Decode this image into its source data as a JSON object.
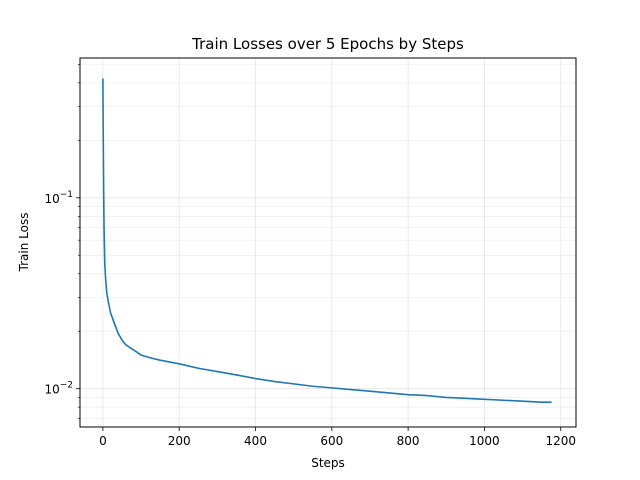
{
  "chart_data": {
    "type": "line",
    "title": "Train Losses over 5 Epochs by Steps",
    "xlabel": "Steps",
    "ylabel": "Train Loss",
    "xlim": [
      -60,
      1240
    ],
    "ylim": [
      0.0063,
      0.54
    ],
    "yscale": "log",
    "grid": true,
    "line_color": "#1f77b4",
    "x_ticks": [
      {
        "value": 0,
        "label": "0"
      },
      {
        "value": 200,
        "label": "200"
      },
      {
        "value": 400,
        "label": "400"
      },
      {
        "value": 600,
        "label": "600"
      },
      {
        "value": 800,
        "label": "800"
      },
      {
        "value": 1000,
        "label": "1000"
      },
      {
        "value": 1200,
        "label": "1200"
      }
    ],
    "y_major_ticks": [
      {
        "value": 0.01,
        "base": "10",
        "exp": "−2"
      },
      {
        "value": 0.1,
        "base": "10",
        "exp": "−1"
      }
    ],
    "y_minor_ticks": [
      0.007,
      0.008,
      0.009,
      0.02,
      0.03,
      0.04,
      0.05,
      0.06,
      0.07,
      0.08,
      0.09,
      0.2,
      0.3,
      0.4,
      0.5
    ],
    "series": [
      {
        "x": [
          0,
          1,
          2,
          3,
          4,
          5,
          7,
          10,
          15,
          20,
          30,
          40,
          50,
          60,
          75,
          90,
          100,
          125,
          150,
          200,
          250,
          300,
          350,
          400,
          450,
          500,
          550,
          600,
          650,
          700,
          750,
          800,
          850,
          900,
          950,
          1000,
          1050,
          1100,
          1150,
          1175
        ],
        "y": [
          0.42,
          0.2,
          0.11,
          0.07,
          0.055,
          0.045,
          0.038,
          0.032,
          0.028,
          0.025,
          0.022,
          0.0195,
          0.018,
          0.017,
          0.0162,
          0.0155,
          0.015,
          0.0145,
          0.0141,
          0.0135,
          0.0128,
          0.0123,
          0.0118,
          0.0113,
          0.0109,
          0.0106,
          0.0103,
          0.0101,
          0.0099,
          0.0097,
          0.0095,
          0.0093,
          0.0092,
          0.009,
          0.0089,
          0.0088,
          0.0087,
          0.0086,
          0.0085,
          0.0085
        ]
      }
    ]
  }
}
